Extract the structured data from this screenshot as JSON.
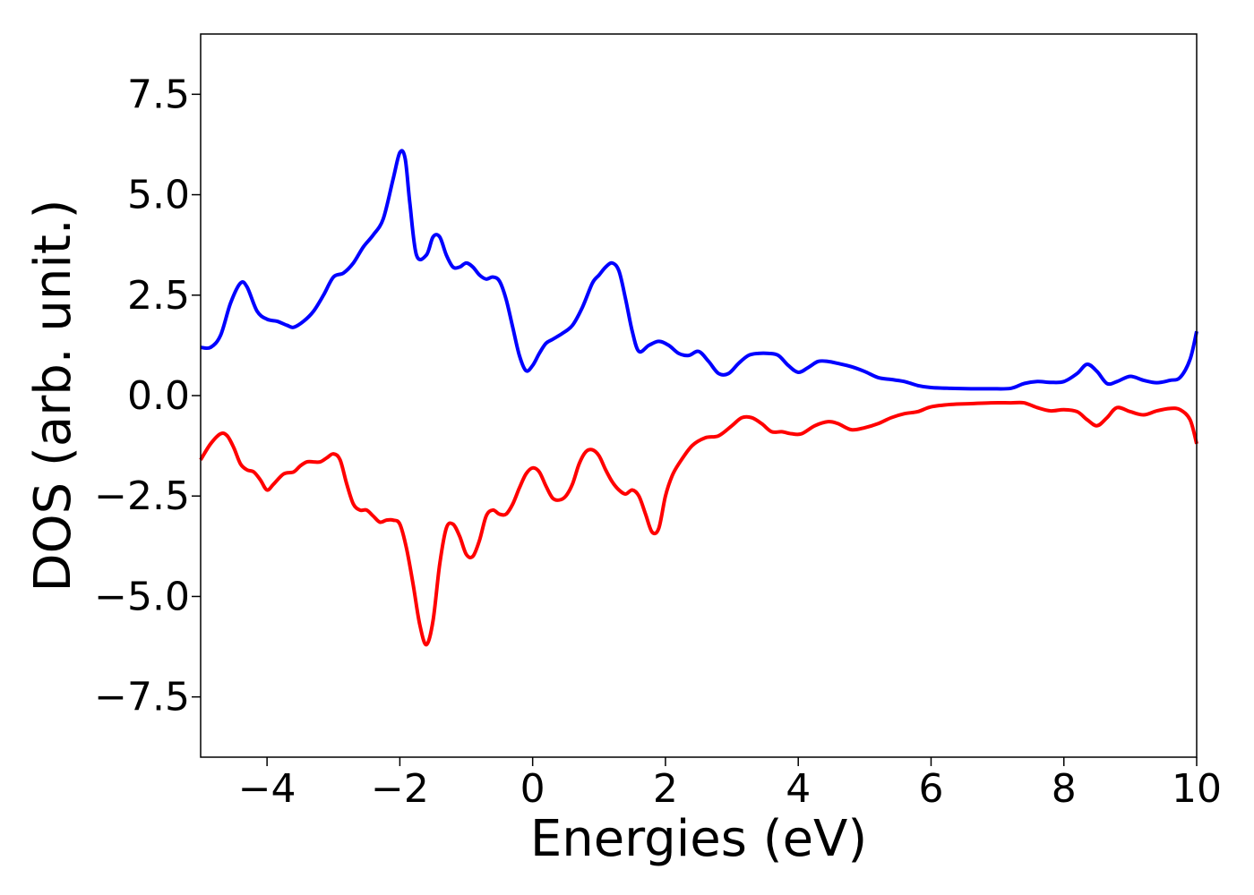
{
  "chart_data": {
    "type": "line",
    "title": "",
    "xlabel": "Energies (eV)",
    "ylabel": "DOS (arb. unit.)",
    "xlim": [
      -5,
      10
    ],
    "ylim": [
      -9,
      9
    ],
    "xticks": [
      -4,
      -2,
      0,
      2,
      4,
      6,
      8,
      10
    ],
    "xtick_labels": [
      "−4",
      "−2",
      "0",
      "2",
      "4",
      "6",
      "8",
      "10"
    ],
    "yticks": [
      -7.5,
      -5.0,
      -2.5,
      0.0,
      2.5,
      5.0,
      7.5
    ],
    "ytick_labels": [
      "−7.5",
      "−5.0",
      "−2.5",
      "0.0",
      "2.5",
      "5.0",
      "7.5"
    ],
    "grid": false,
    "series": [
      {
        "color": "#0000ff",
        "x": [
          -5.0,
          -4.85,
          -4.7,
          -4.55,
          -4.4,
          -4.3,
          -4.15,
          -4.0,
          -3.85,
          -3.7,
          -3.6,
          -3.45,
          -3.3,
          -3.15,
          -3.0,
          -2.85,
          -2.7,
          -2.55,
          -2.4,
          -2.25,
          -2.1,
          -2.0,
          -1.92,
          -1.85,
          -1.75,
          -1.6,
          -1.5,
          -1.4,
          -1.3,
          -1.2,
          -1.1,
          -1.0,
          -0.9,
          -0.8,
          -0.7,
          -0.6,
          -0.5,
          -0.4,
          -0.3,
          -0.2,
          -0.1,
          0.0,
          0.1,
          0.2,
          0.3,
          0.45,
          0.6,
          0.75,
          0.9,
          1.0,
          1.1,
          1.2,
          1.3,
          1.4,
          1.5,
          1.6,
          1.75,
          1.9,
          2.05,
          2.2,
          2.35,
          2.5,
          2.65,
          2.8,
          2.95,
          3.1,
          3.25,
          3.4,
          3.55,
          3.7,
          3.85,
          4.0,
          4.15,
          4.3,
          4.45,
          4.6,
          4.8,
          5.0,
          5.2,
          5.4,
          5.6,
          5.8,
          6.0,
          6.3,
          6.6,
          6.9,
          7.2,
          7.4,
          7.6,
          7.8,
          8.0,
          8.2,
          8.35,
          8.5,
          8.65,
          8.8,
          9.0,
          9.2,
          9.4,
          9.6,
          9.75,
          9.9,
          10.0
        ],
        "y": [
          1.2,
          1.2,
          1.5,
          2.3,
          2.8,
          2.7,
          2.1,
          1.9,
          1.85,
          1.75,
          1.7,
          1.85,
          2.1,
          2.5,
          2.95,
          3.05,
          3.3,
          3.7,
          4.0,
          4.4,
          5.4,
          6.05,
          5.9,
          4.8,
          3.5,
          3.5,
          3.95,
          3.95,
          3.5,
          3.2,
          3.2,
          3.3,
          3.2,
          3.0,
          2.9,
          2.95,
          2.85,
          2.4,
          1.7,
          1.0,
          0.62,
          0.75,
          1.05,
          1.3,
          1.4,
          1.55,
          1.75,
          2.2,
          2.8,
          3.0,
          3.2,
          3.3,
          3.1,
          2.4,
          1.6,
          1.1,
          1.25,
          1.35,
          1.25,
          1.05,
          1.0,
          1.1,
          0.85,
          0.55,
          0.55,
          0.8,
          1.0,
          1.05,
          1.05,
          1.0,
          0.75,
          0.58,
          0.7,
          0.85,
          0.85,
          0.8,
          0.72,
          0.6,
          0.45,
          0.4,
          0.35,
          0.25,
          0.2,
          0.18,
          0.17,
          0.17,
          0.18,
          0.3,
          0.35,
          0.33,
          0.35,
          0.55,
          0.78,
          0.6,
          0.3,
          0.35,
          0.48,
          0.38,
          0.32,
          0.38,
          0.45,
          0.9,
          1.6
        ]
      },
      {
        "color": "#ff0000",
        "x": [
          -5.0,
          -4.85,
          -4.7,
          -4.6,
          -4.5,
          -4.4,
          -4.3,
          -4.2,
          -4.1,
          -4.0,
          -3.9,
          -3.75,
          -3.6,
          -3.5,
          -3.4,
          -3.3,
          -3.2,
          -3.1,
          -3.0,
          -2.9,
          -2.8,
          -2.7,
          -2.6,
          -2.5,
          -2.4,
          -2.3,
          -2.2,
          -2.1,
          -2.0,
          -1.9,
          -1.8,
          -1.7,
          -1.6,
          -1.5,
          -1.4,
          -1.3,
          -1.2,
          -1.1,
          -1.0,
          -0.9,
          -0.8,
          -0.7,
          -0.6,
          -0.5,
          -0.4,
          -0.3,
          -0.2,
          -0.1,
          0.0,
          0.1,
          0.2,
          0.3,
          0.4,
          0.5,
          0.6,
          0.7,
          0.8,
          0.9,
          1.0,
          1.1,
          1.2,
          1.3,
          1.4,
          1.5,
          1.6,
          1.7,
          1.8,
          1.9,
          2.0,
          2.1,
          2.2,
          2.4,
          2.6,
          2.8,
          3.0,
          3.15,
          3.3,
          3.45,
          3.6,
          3.75,
          3.9,
          4.05,
          4.25,
          4.45,
          4.6,
          4.8,
          5.0,
          5.2,
          5.4,
          5.6,
          5.8,
          6.0,
          6.3,
          6.6,
          6.9,
          7.2,
          7.4,
          7.6,
          7.8,
          8.0,
          8.2,
          8.35,
          8.5,
          8.65,
          8.8,
          9.0,
          9.2,
          9.4,
          9.6,
          9.75,
          9.9,
          10.0
        ],
        "y": [
          -1.6,
          -1.2,
          -0.95,
          -1.0,
          -1.3,
          -1.7,
          -1.85,
          -1.9,
          -2.1,
          -2.35,
          -2.2,
          -1.95,
          -1.9,
          -1.75,
          -1.65,
          -1.65,
          -1.65,
          -1.55,
          -1.45,
          -1.6,
          -2.2,
          -2.7,
          -2.85,
          -2.85,
          -3.0,
          -3.15,
          -3.1,
          -3.1,
          -3.2,
          -3.8,
          -4.7,
          -5.7,
          -6.2,
          -5.6,
          -4.2,
          -3.3,
          -3.2,
          -3.5,
          -3.95,
          -4.0,
          -3.6,
          -3.0,
          -2.85,
          -2.95,
          -2.95,
          -2.7,
          -2.3,
          -1.95,
          -1.8,
          -1.9,
          -2.25,
          -2.55,
          -2.6,
          -2.5,
          -2.2,
          -1.7,
          -1.4,
          -1.35,
          -1.5,
          -1.85,
          -2.15,
          -2.35,
          -2.45,
          -2.35,
          -2.5,
          -2.95,
          -3.4,
          -3.3,
          -2.5,
          -2.0,
          -1.7,
          -1.25,
          -1.05,
          -1.0,
          -0.75,
          -0.55,
          -0.55,
          -0.7,
          -0.9,
          -0.9,
          -0.95,
          -0.95,
          -0.75,
          -0.65,
          -0.7,
          -0.85,
          -0.8,
          -0.7,
          -0.55,
          -0.45,
          -0.4,
          -0.28,
          -0.22,
          -0.2,
          -0.18,
          -0.18,
          -0.18,
          -0.3,
          -0.38,
          -0.35,
          -0.4,
          -0.6,
          -0.75,
          -0.55,
          -0.3,
          -0.4,
          -0.48,
          -0.38,
          -0.32,
          -0.35,
          -0.6,
          -1.2
        ]
      }
    ]
  }
}
